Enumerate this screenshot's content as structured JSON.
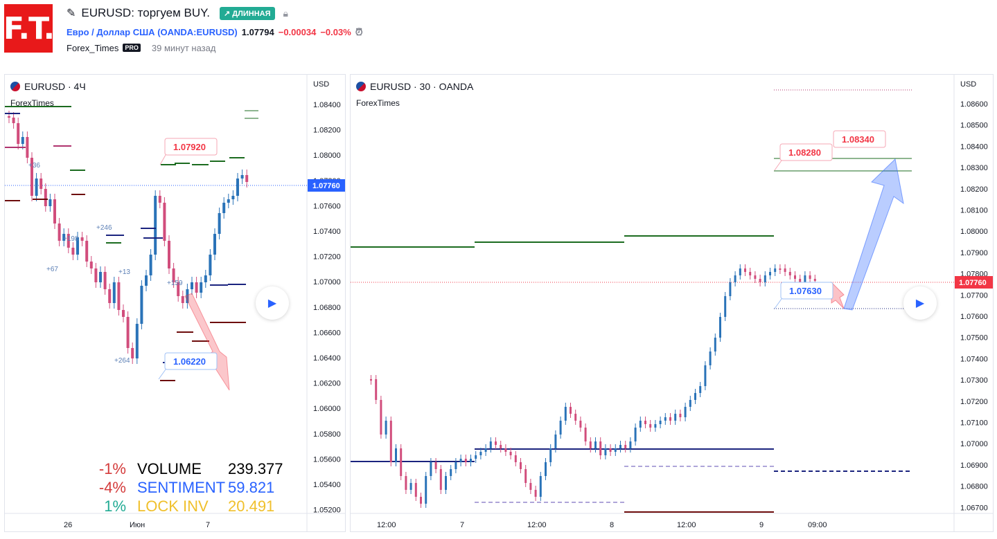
{
  "header": {
    "logo_text": "F.T.",
    "idea_title": "EURUSD: торгуем BUY.",
    "badge_label": "↗ ДЛИННАЯ",
    "symbol_name": "Евро / Доллар США",
    "symbol_code": "(OANDA:EURUSD)",
    "price": "1.07794",
    "change_abs": "−0.00034",
    "change_pct": "−0.03%",
    "author": "Forex_Times",
    "author_badge": "PRO",
    "time_ago": "39 минут назад",
    "icons": [
      "idea-icon",
      "lock-icon",
      "alarm-icon"
    ],
    "accent_color": "#2962ff",
    "up_color": "#22ab94",
    "down_color": "#f23645"
  },
  "left_chart": {
    "legend": "EURUSD · 4Ч",
    "sub_legend": "ForexTimes",
    "currency": "USD",
    "y_ticks": [
      "1.08400",
      "1.08200",
      "1.08000",
      "1.07800",
      "1.07600",
      "1.07400",
      "1.07200",
      "1.07000",
      "1.06800",
      "1.06600",
      "1.06400",
      "1.06200",
      "1.06000",
      "1.05800",
      "1.05600",
      "1.05400",
      "1.05200"
    ],
    "x_ticks": [
      "26",
      "Июн",
      "7"
    ],
    "price_tag": "1.07760",
    "callout_top": "1.07920",
    "callout_bottom": "1.06220",
    "small_labels": [
      "+36",
      "+246",
      "+198",
      "+67",
      "+13",
      "+159",
      "+264"
    ],
    "stats": [
      {
        "pct": "-1%",
        "label": "VOLUME",
        "value": "239.377",
        "color": "#000000",
        "pct_color": "#d43b3b"
      },
      {
        "pct": "-4%",
        "label": "SENTIMENT",
        "value": "59.821",
        "color": "#2962ff",
        "pct_color": "#d43b3b"
      },
      {
        "pct": "1%",
        "label": "LOCK INV",
        "value": "20.491",
        "color": "#f0c02c",
        "pct_color": "#22ab94"
      }
    ]
  },
  "right_chart": {
    "legend": "EURUSD · 30 · OANDA",
    "sub_legend": "ForexTimes",
    "currency": "USD",
    "y_ticks": [
      "1.08600",
      "1.08500",
      "1.08400",
      "1.08300",
      "1.08200",
      "1.08100",
      "1.08000",
      "1.07900",
      "1.07800",
      "1.07700",
      "1.07600",
      "1.07500",
      "1.07400",
      "1.07300",
      "1.07200",
      "1.07100",
      "1.07000",
      "1.06900",
      "1.06800",
      "1.06700"
    ],
    "x_ticks": [
      "12:00",
      "7",
      "12:00",
      "8",
      "12:00",
      "9",
      "09:00"
    ],
    "price_tag": "1.07760",
    "callout_a": "1.08280",
    "callout_b": "1.08340",
    "callout_entry": "1.07630"
  }
}
